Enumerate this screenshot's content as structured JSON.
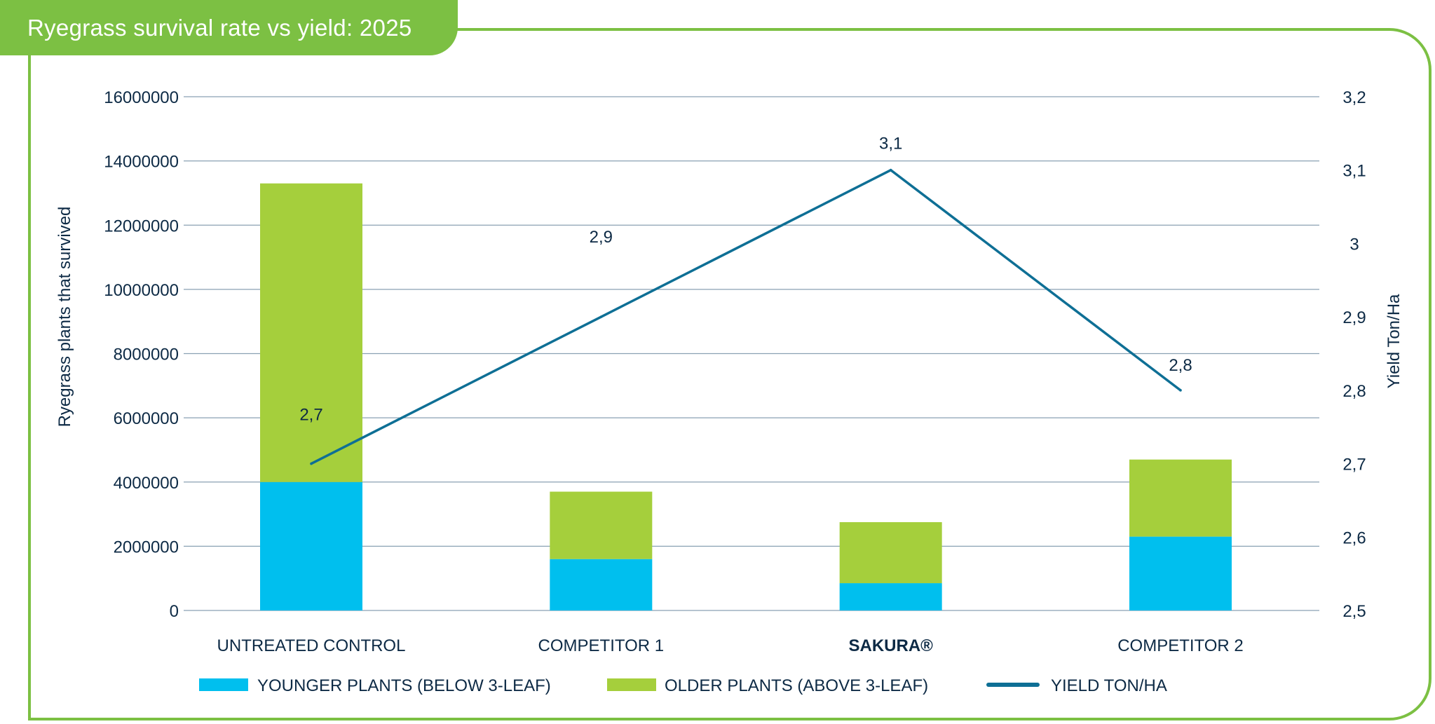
{
  "chart_data": {
    "type": "bar",
    "title": "Ryegrass survival rate vs yield: 2025",
    "categories": [
      "UNTREATED CONTROL",
      "COMPETITOR 1",
      "SAKURA®",
      "COMPETITOR 2"
    ],
    "series": [
      {
        "name": "YOUNGER PLANTS (BELOW 3-LEAF)",
        "kind": "bar",
        "stacked": true,
        "axis": "left",
        "color": "#00bfee",
        "values": [
          4000000,
          1600000,
          850000,
          2300000
        ]
      },
      {
        "name": "OLDER PLANTS (ABOVE 3-LEAF)",
        "kind": "bar",
        "stacked": true,
        "axis": "left",
        "color": "#a5cf3c",
        "values": [
          9300000,
          2100000,
          1900000,
          2400000
        ]
      },
      {
        "name": "YIELD TON/HA",
        "kind": "line",
        "axis": "right",
        "color": "#0e6f95",
        "values": [
          2.7,
          2.9,
          3.1,
          2.8
        ],
        "labels": [
          "2,7",
          "2,9",
          "3,1",
          "2,8"
        ]
      }
    ],
    "ylabel": "Ryegrass plants that survived",
    "ylim": [
      0,
      16000000
    ],
    "yticks": [
      "0",
      "2000000",
      "4000000",
      "6000000",
      "8000000",
      "10000000",
      "12000000",
      "14000000",
      "16000000"
    ],
    "y2label": "Yield Ton/Ha",
    "y2lim": [
      2.5,
      3.2
    ],
    "y2ticks": [
      "2,5",
      "2,6",
      "2,7",
      "2,8",
      "2,9",
      "3",
      "3,1",
      "3,2"
    ],
    "grid": true,
    "legend": "bottom"
  }
}
